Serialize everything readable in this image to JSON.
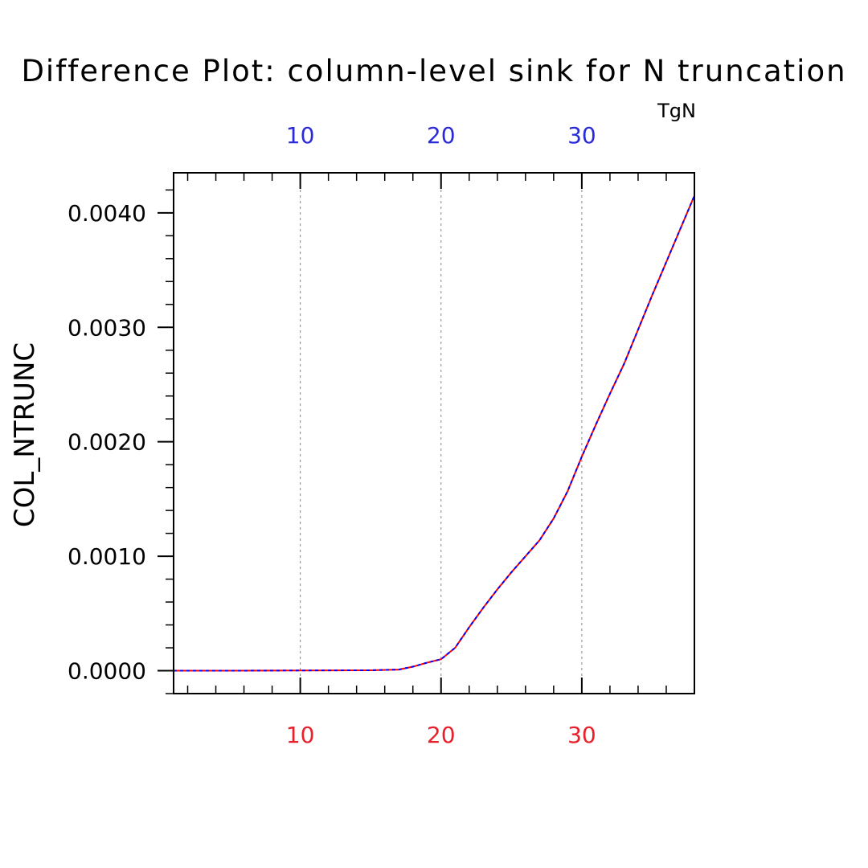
{
  "chart_data": {
    "type": "line",
    "title": "Difference Plot: column-level sink for N truncation",
    "ylabel": "COL_NTRUNC",
    "x_top_label": "TgN",
    "xlim": [
      1,
      38
    ],
    "ylim": [
      -0.0002,
      0.00435
    ],
    "x_ticks": [
      10,
      20,
      30
    ],
    "y_ticks": [
      0.0,
      0.001,
      0.002,
      0.003,
      0.004
    ],
    "y_tick_labels": [
      "0.0000",
      "0.0010",
      "0.0020",
      "0.0030",
      "0.0040"
    ],
    "x_tick_labels_bottom": [
      "10",
      "20",
      "30"
    ],
    "x_tick_labels_top": [
      "10",
      "20",
      "30"
    ],
    "grid": "vertical-dashed",
    "series": [
      {
        "color": "#ff0000",
        "style": "solid",
        "x": [
          1,
          5,
          10,
          15,
          17,
          18,
          19,
          20,
          21,
          22,
          23,
          24,
          25,
          26,
          27,
          28,
          29,
          30,
          31,
          32,
          33,
          34,
          35,
          36,
          37,
          38
        ],
        "y": [
          0.0,
          0.0,
          2e-06,
          4e-06,
          1e-05,
          3.5e-05,
          7e-05,
          0.0001,
          0.0002,
          0.00038,
          0.00055,
          0.00071,
          0.00086,
          0.001,
          0.00114,
          0.00133,
          0.00157,
          0.00187,
          0.00215,
          0.00242,
          0.00268,
          0.00298,
          0.00328,
          0.00357,
          0.00386,
          0.00415
        ]
      },
      {
        "color": "#0000ff",
        "style": "dashed",
        "x": [
          1,
          5,
          10,
          15,
          17,
          18,
          19,
          20,
          21,
          22,
          23,
          24,
          25,
          26,
          27,
          28,
          29,
          30,
          31,
          32,
          33,
          34,
          35,
          36,
          37,
          38
        ],
        "y": [
          0.0,
          0.0,
          2e-06,
          4e-06,
          1e-05,
          3.5e-05,
          7e-05,
          0.0001,
          0.0002,
          0.00038,
          0.00055,
          0.00071,
          0.00086,
          0.001,
          0.00114,
          0.00133,
          0.00157,
          0.00187,
          0.00215,
          0.00242,
          0.00268,
          0.00298,
          0.00328,
          0.00357,
          0.00386,
          0.00415
        ]
      }
    ],
    "colors": {
      "top_axis_labels": "#2a2ad8",
      "bottom_axis_labels": "#e8202a",
      "grid": "#888888"
    }
  }
}
